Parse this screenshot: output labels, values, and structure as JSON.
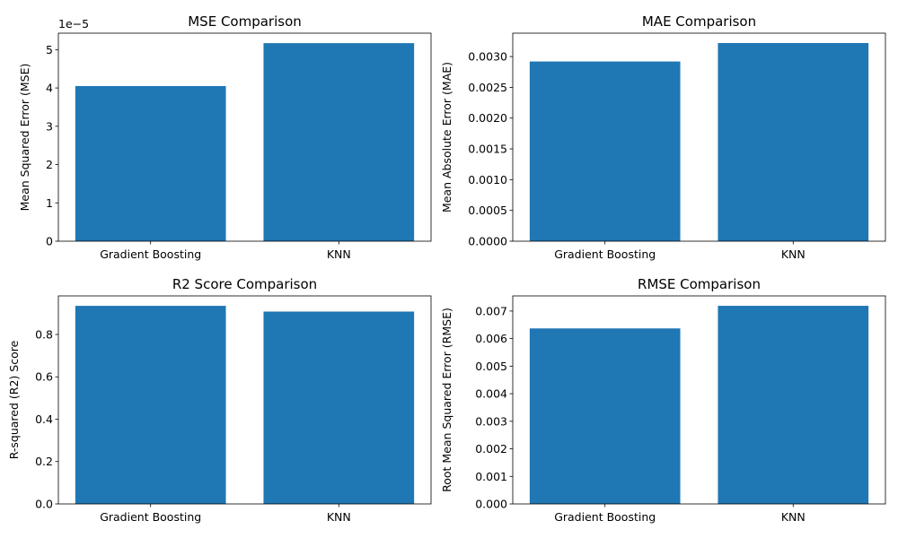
{
  "figure": {
    "bar_color": "#1f77b4"
  },
  "chart_data": [
    {
      "type": "bar",
      "title": "MSE Comparison",
      "xlabel": "",
      "ylabel": "Mean Squared Error (MSE)",
      "categories": [
        "Gradient Boosting",
        "KNN"
      ],
      "values": [
        4.05e-05,
        5.17e-05
      ],
      "ylim": [
        0,
        5.43e-05
      ],
      "yticks": [
        0,
        1e-05,
        2e-05,
        3e-05,
        4e-05,
        5e-05
      ],
      "ytick_labels": [
        "0",
        "1",
        "2",
        "3",
        "4",
        "5"
      ],
      "offset_label": "1e−5",
      "grid": false
    },
    {
      "type": "bar",
      "title": "MAE Comparison",
      "xlabel": "",
      "ylabel": "Mean Absolute Error (MAE)",
      "categories": [
        "Gradient Boosting",
        "KNN"
      ],
      "values": [
        0.00292,
        0.00322
      ],
      "ylim": [
        0,
        0.00338
      ],
      "yticks": [
        0,
        0.0005,
        0.001,
        0.0015,
        0.002,
        0.0025,
        0.003
      ],
      "ytick_labels": [
        "0.0000",
        "0.0005",
        "0.0010",
        "0.0015",
        "0.0020",
        "0.0025",
        "0.0030"
      ],
      "grid": false
    },
    {
      "type": "bar",
      "title": "R2 Score Comparison",
      "xlabel": "",
      "ylabel": "R-squared (R2) Score",
      "categories": [
        "Gradient Boosting",
        "KNN"
      ],
      "values": [
        0.935,
        0.908
      ],
      "ylim": [
        0,
        0.982
      ],
      "yticks": [
        0,
        0.2,
        0.4,
        0.6,
        0.8
      ],
      "ytick_labels": [
        "0.0",
        "0.2",
        "0.4",
        "0.6",
        "0.8"
      ],
      "grid": false
    },
    {
      "type": "bar",
      "title": "RMSE Comparison",
      "xlabel": "",
      "ylabel": "Root Mean Squared Error (RMSE)",
      "categories": [
        "Gradient Boosting",
        "KNN"
      ],
      "values": [
        0.00637,
        0.00719
      ],
      "ylim": [
        0,
        0.00755
      ],
      "yticks": [
        0,
        0.001,
        0.002,
        0.003,
        0.004,
        0.005,
        0.006,
        0.007
      ],
      "ytick_labels": [
        "0.000",
        "0.001",
        "0.002",
        "0.003",
        "0.004",
        "0.005",
        "0.006",
        "0.007"
      ],
      "grid": false
    }
  ]
}
